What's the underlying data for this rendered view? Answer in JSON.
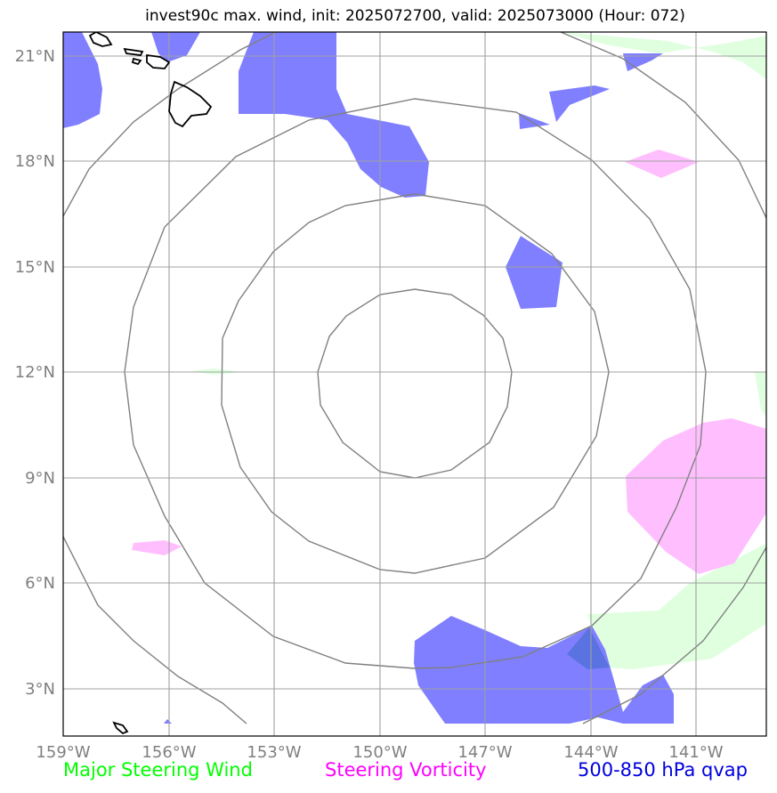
{
  "title": "invest90c max. wind, init: 2025072700, valid: 2025073000 (Hour: 072)",
  "map": {
    "lon_range": [
      -159,
      -139
    ],
    "lat_range": [
      1.8,
      21.6
    ],
    "lat_ticks": [
      {
        "value": 21,
        "label": "21°N"
      },
      {
        "value": 18,
        "label": "18°N"
      },
      {
        "value": 15,
        "label": "15°N"
      },
      {
        "value": 12,
        "label": "12°N"
      },
      {
        "value": 9,
        "label": "9°N"
      },
      {
        "value": 6,
        "label": "6°N"
      },
      {
        "value": 3,
        "label": "3°N"
      }
    ],
    "lon_ticks": [
      {
        "value": -159,
        "label": "159°W"
      },
      {
        "value": -156,
        "label": "156°W"
      },
      {
        "value": -153,
        "label": "153°W"
      },
      {
        "value": -150,
        "label": "150°W"
      },
      {
        "value": -147,
        "label": "147°W"
      },
      {
        "value": -144,
        "label": "144°W"
      },
      {
        "value": -141,
        "label": "141°W"
      }
    ],
    "range_ring_center": {
      "lon": -150,
      "lat": 12.0
    },
    "colors": {
      "qvap": "#7f7fff",
      "vorticity": "#ffbfff",
      "wind": "#dfffdf",
      "ring": "#808080",
      "grid": "#a0a0a0",
      "coast": "#000000"
    }
  },
  "legend": {
    "wind": {
      "label": "Major Steering Wind",
      "color": "#00ff00"
    },
    "vorticity": {
      "label": "Steering Vorticity",
      "color": "#ff00ff"
    },
    "qvap": {
      "label": "500-850 hPa qvap",
      "color": "#0000dd"
    }
  }
}
